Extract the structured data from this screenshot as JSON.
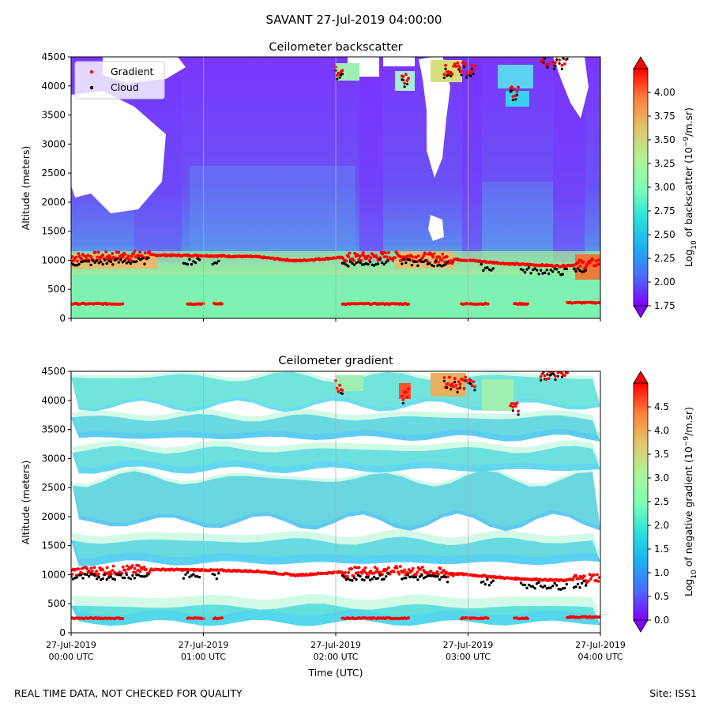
{
  "chart_data": [
    {
      "type": "heatmap",
      "title": "Ceilometer backscatter",
      "xlabel": "",
      "ylabel": "Altitude (meters)",
      "ylim": [
        0,
        4500
      ],
      "yticks": [
        0,
        500,
        1000,
        1500,
        2000,
        2500,
        3000,
        3500,
        4000,
        4500
      ],
      "x_range_hours": [
        0,
        4
      ],
      "x_grid_hours": [
        1,
        2,
        3
      ],
      "colorbar": {
        "label_prefix": "Log",
        "label_sub": "10",
        "label_mid": " of backscatter (10",
        "label_sup": "−9",
        "label_suffix": "/m.sr)",
        "range": [
          1.75,
          4.25
        ],
        "ticks": [
          "1.75",
          "2.00",
          "2.25",
          "2.50",
          "2.75",
          "3.00",
          "3.25",
          "3.50",
          "3.75",
          "4.00"
        ]
      },
      "legend": {
        "location": "upper-left",
        "entries": [
          "Gradient",
          "Cloud"
        ]
      },
      "gradient_layer": [
        {
          "t": 0.0,
          "alt": 1050
        },
        {
          "t": 0.3,
          "alt": 1070
        },
        {
          "t": 0.6,
          "alt": 1090
        },
        {
          "t": 1.0,
          "alt": 1080
        },
        {
          "t": 1.4,
          "alt": 1060
        },
        {
          "t": 1.7,
          "alt": 990
        },
        {
          "t": 2.0,
          "alt": 1040
        },
        {
          "t": 2.4,
          "alt": 1070
        },
        {
          "t": 2.7,
          "alt": 1050
        },
        {
          "t": 3.0,
          "alt": 1000
        },
        {
          "t": 3.3,
          "alt": 940
        },
        {
          "t": 3.7,
          "alt": 900
        },
        {
          "t": 4.0,
          "alt": 960
        }
      ],
      "surface_layer_alt": 250,
      "cloud_base_alt": 950
    },
    {
      "type": "heatmap",
      "title": "Ceilometer gradient",
      "xlabel": "Time (UTC)",
      "ylabel": "Altitude (meters)",
      "ylim": [
        0,
        4500
      ],
      "yticks": [
        0,
        500,
        1000,
        1500,
        2000,
        2500,
        3000,
        3500,
        4000,
        4500
      ],
      "x_range_hours": [
        0,
        4
      ],
      "x_grid_hours": [
        1,
        2,
        3
      ],
      "xticks": [
        {
          "date": "27-Jul-2019",
          "time": "00:00 UTC"
        },
        {
          "date": "27-Jul-2019",
          "time": "01:00 UTC"
        },
        {
          "date": "27-Jul-2019",
          "time": "02:00 UTC"
        },
        {
          "date": "27-Jul-2019",
          "time": "03:00 UTC"
        },
        {
          "date": "27-Jul-2019",
          "time": "04:00 UTC"
        }
      ],
      "colorbar": {
        "label_prefix": "Log",
        "label_sub": "10",
        "label_mid": " of negative gradient (10",
        "label_sup": "−9",
        "label_suffix": "/m.sr)",
        "range": [
          0,
          5
        ],
        "ticks": [
          "0.0",
          "0.5",
          "1.0",
          "1.5",
          "2.0",
          "2.5",
          "3.0",
          "3.5",
          "4.0",
          "4.5"
        ]
      },
      "bands_alt": [
        [
          170,
          450
        ],
        [
          1200,
          1580
        ],
        [
          1900,
          2650
        ],
        [
          2800,
          3150
        ],
        [
          3350,
          3700
        ],
        [
          3900,
          4400
        ]
      ]
    }
  ],
  "figure": {
    "suptitle": "SAVANT 27-Jul-2019 04:00:00",
    "footer_left": "REAL TIME DATA, NOT CHECKED FOR QUALITY",
    "footer_right": "Site: ISS1"
  },
  "colors": {
    "gradient_marker": "#ff0000",
    "cloud_marker": "#000000",
    "grid": "#b0b0b0"
  }
}
